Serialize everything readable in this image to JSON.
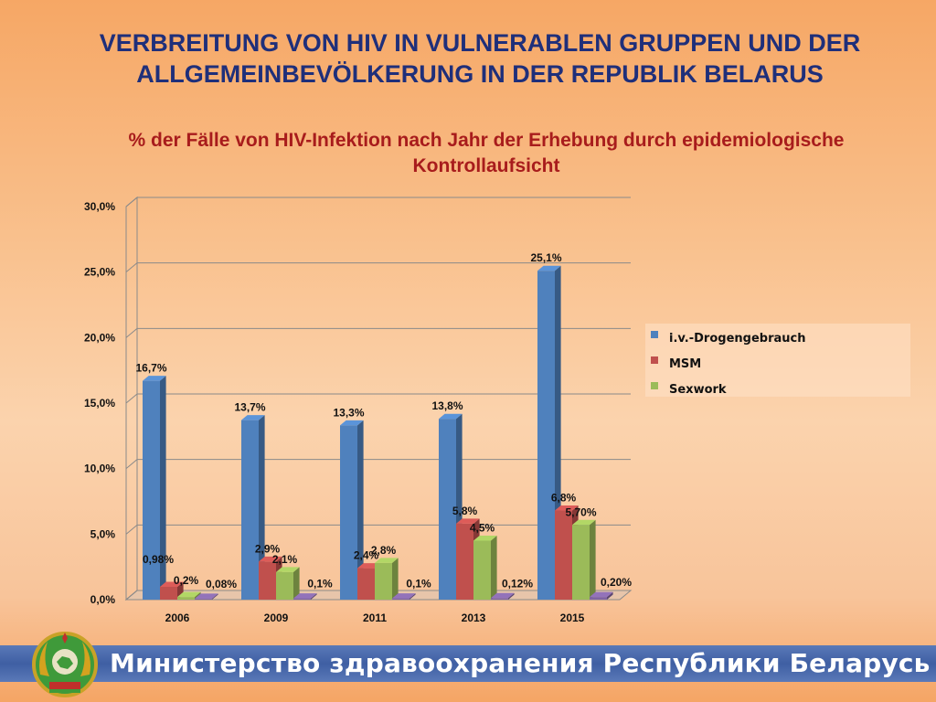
{
  "title": "VERBREITUNG VON HIV IN VULNERABLEN GRUPPEN UND DER ALLGEMEINBEVÖLKERUNG IN DER REPUBLIK BELARUS",
  "subtitle": "% der Fälle von HIV-Infektion nach Jahr der Erhebung durch epidemiologische Kontrollaufsicht",
  "footer": "Министерство здравоохранения Республики Беларусь",
  "colors": {
    "idu": "#4f81bd",
    "msm": "#c0504d",
    "sexwork": "#9bbb59",
    "general": "#8064a2"
  },
  "chart_data": {
    "type": "bar",
    "title": "% der Fälle von HIV-Infektion nach Jahr der Erhebung durch epidemiologische Kontrollaufsicht",
    "categories": [
      "2006",
      "2009",
      "2011",
      "2013",
      "2015"
    ],
    "ylim": [
      0,
      30
    ],
    "yticks": [
      "0,0%",
      "5,0%",
      "10,0%",
      "15,0%",
      "20,0%",
      "25,0%",
      "30,0%"
    ],
    "legend_position": "right",
    "grid": true,
    "series": [
      {
        "name": "i.v.-Drogengebrauch",
        "values": [
          16.7,
          13.7,
          13.3,
          13.8,
          25.1
        ],
        "labels": [
          "16,7%",
          "13,7%",
          "13,3%",
          "13,8%",
          "25,1%"
        ]
      },
      {
        "name": "MSM",
        "values": [
          0.98,
          2.9,
          2.4,
          5.8,
          6.8
        ],
        "labels": [
          "0,98%",
          "2,9%",
          "2,4%",
          "5,8%",
          "6,8%"
        ]
      },
      {
        "name": "Sexwork",
        "values": [
          0.2,
          2.1,
          2.8,
          4.5,
          5.7
        ],
        "labels": [
          "0,2%",
          "2,1%",
          "2,8%",
          "4,5%",
          "5,70%"
        ]
      },
      {
        "values": [
          0.08,
          0.1,
          0.1,
          0.12,
          0.2
        ],
        "labels": [
          "0,08%",
          "0,1%",
          "0,1%",
          "0,12%",
          "0,20%"
        ]
      }
    ]
  }
}
